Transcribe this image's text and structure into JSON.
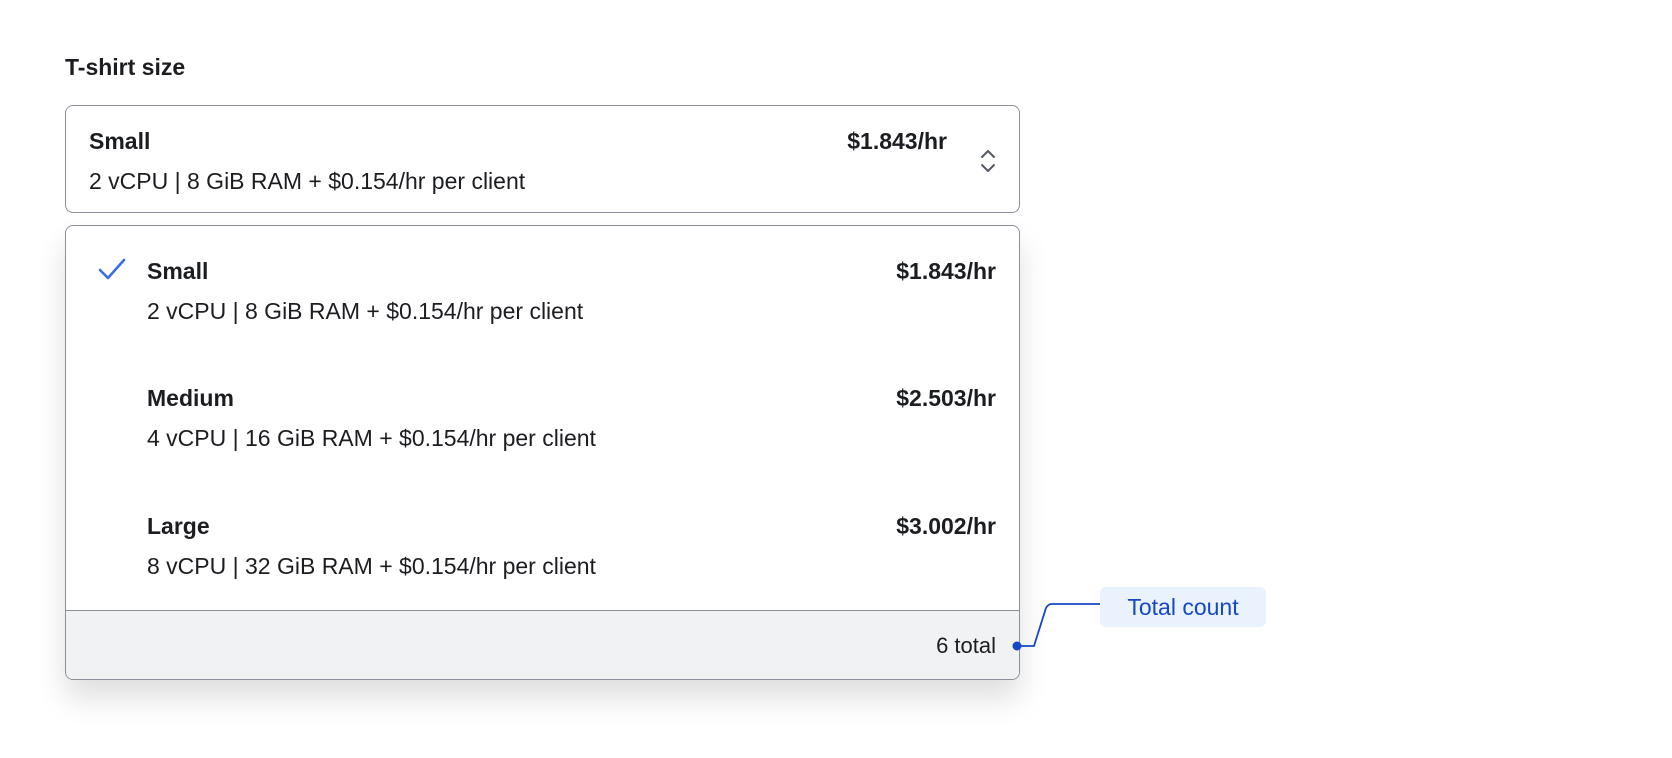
{
  "field": {
    "label": "T-shirt size"
  },
  "select": {
    "selected_name": "Small",
    "selected_desc": "2 vCPU | 8 GiB RAM + $0.154/hr per client",
    "selected_price": "$1.843/hr",
    "icon": "chevron-up-down-icon"
  },
  "options": [
    {
      "name": "Small",
      "desc": "2 vCPU | 8 GiB RAM + $0.154/hr per client",
      "price": "$1.843/hr",
      "selected": true
    },
    {
      "name": "Medium",
      "desc": "4 vCPU | 16 GiB RAM + $0.154/hr per client",
      "price": "$2.503/hr",
      "selected": false
    },
    {
      "name": "Large",
      "desc": "8 vCPU | 32 GiB RAM + $0.154/hr per client",
      "price": "$3.002/hr",
      "selected": false
    }
  ],
  "footer": {
    "total": "6 total"
  },
  "annotation": {
    "label": "Total count",
    "color": "#1547c9"
  },
  "colors": {
    "check": "#3b6fe0",
    "border": "#8b8f99",
    "footer_bg": "#f1f2f4"
  }
}
